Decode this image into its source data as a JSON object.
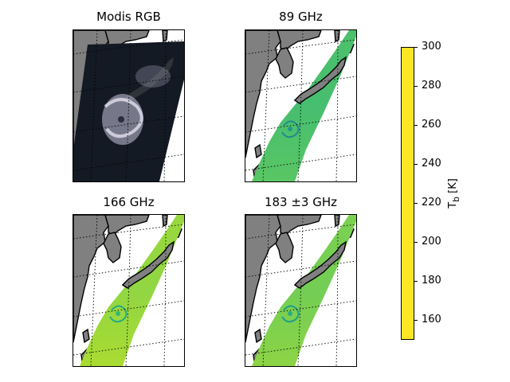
{
  "figure": {
    "panels": [
      {
        "id": "modis",
        "title": "Modis RGB",
        "kind": "rgb"
      },
      {
        "id": "ghz89",
        "title": "89 GHz",
        "kind": "tb",
        "base_tb": 255
      },
      {
        "id": "ghz166",
        "title": "166 GHz",
        "kind": "tb",
        "base_tb": 275
      },
      {
        "id": "ghz183",
        "title": "183 ±3 GHz",
        "kind": "tb",
        "base_tb": 268
      }
    ]
  },
  "colorbar": {
    "label_html": "T<sub>b</sub> [K]",
    "min": 150,
    "max": 300,
    "ticks": [
      {
        "value": 160,
        "label": "160"
      },
      {
        "value": 180,
        "label": "180"
      },
      {
        "value": 200,
        "label": "200"
      },
      {
        "value": 220,
        "label": "220"
      },
      {
        "value": 240,
        "label": "240"
      },
      {
        "value": 260,
        "label": "260"
      },
      {
        "value": 280,
        "label": "280"
      },
      {
        "value": 300,
        "label": "300"
      }
    ],
    "colormap": "viridis"
  },
  "colors": {
    "land": "#808080",
    "coast": "#000000",
    "grid": "#000000",
    "modis_dark": "#141a24"
  }
}
